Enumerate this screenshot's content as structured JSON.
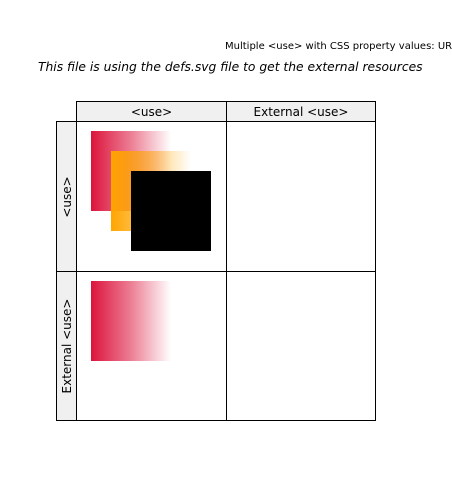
{
  "page": {
    "title": "Multiple <use> with CSS property values: URIs",
    "subtitle": "This file is using the defs.svg file to get the external resources"
  },
  "table": {
    "columns": [
      "<use>",
      "External <use>"
    ],
    "rows": [
      "<use>",
      "External <use>"
    ]
  },
  "colors": {
    "pink": "#dc143c",
    "orange": "#ffa500",
    "black": "#000000",
    "header_bg": "#f0f0f0"
  }
}
